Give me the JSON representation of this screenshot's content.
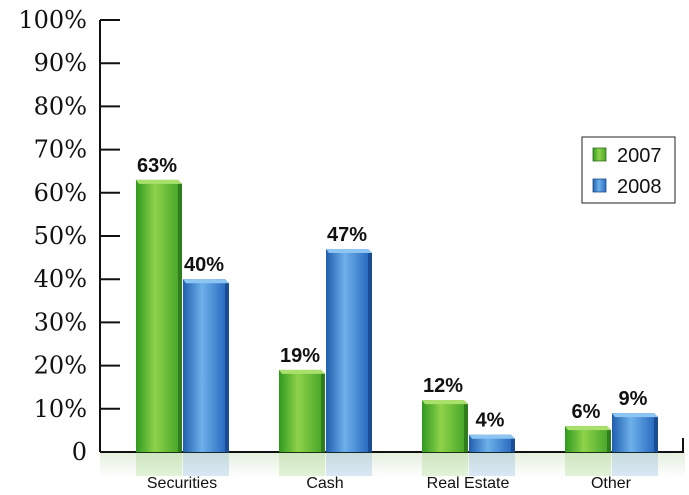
{
  "chart_data": {
    "type": "bar",
    "categories": [
      "Securities",
      "Cash",
      "Real Estate",
      "Other"
    ],
    "series": [
      {
        "name": "2007",
        "values": [
          63,
          19,
          12,
          6
        ],
        "labels": [
          "63%",
          "19%",
          "12%",
          "6%"
        ],
        "color": "#6cc23a"
      },
      {
        "name": "2008",
        "values": [
          40,
          47,
          4,
          9
        ],
        "labels": [
          "40%",
          "47%",
          "4%",
          "9%"
        ],
        "color": "#3d86d1"
      }
    ],
    "yticks": [
      "0",
      "10%",
      "20%",
      "30%",
      "40%",
      "50%",
      "60%",
      "70%",
      "80%",
      "90%",
      "100%"
    ],
    "ylim": [
      0,
      100
    ],
    "legend_position": "right",
    "grid": false
  }
}
